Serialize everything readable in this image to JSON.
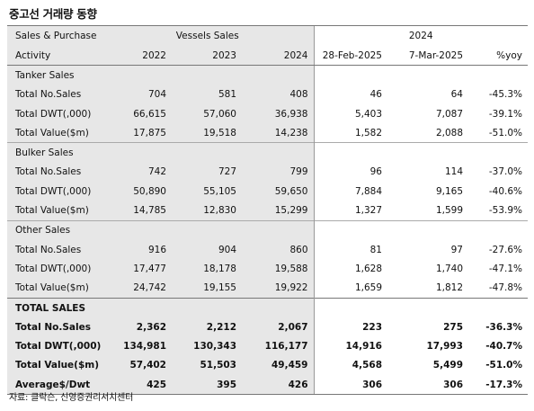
{
  "title": "중고선 거래량 동향",
  "source": "자료: 클락슨, 신영증권리서치센터",
  "header": {
    "col0_row1": "Sales & Purchase",
    "col0_row2": "Activity",
    "group1": "Vessels Sales",
    "group2": "2024",
    "years": [
      "2022",
      "2023",
      "2024"
    ],
    "periods": [
      "28-Feb-2025",
      "7-Mar-2025",
      "%yoy"
    ]
  },
  "sections": [
    {
      "title": "Tanker Sales",
      "rows": [
        {
          "label": "Total No.Sales",
          "v": [
            "704",
            "581",
            "408",
            "46",
            "64",
            "-45.3%"
          ]
        },
        {
          "label": "Total DWT(,000)",
          "v": [
            "66,615",
            "57,060",
            "36,938",
            "5,403",
            "7,087",
            "-39.1%"
          ]
        },
        {
          "label": "Total Value($m)",
          "v": [
            "17,875",
            "19,518",
            "14,238",
            "1,582",
            "2,088",
            "-51.0%"
          ]
        }
      ]
    },
    {
      "title": "Bulker Sales",
      "rows": [
        {
          "label": "Total No.Sales",
          "v": [
            "742",
            "727",
            "799",
            "96",
            "114",
            "-37.0%"
          ]
        },
        {
          "label": "Total DWT(,000)",
          "v": [
            "50,890",
            "55,105",
            "59,650",
            "7,884",
            "9,165",
            "-40.6%"
          ]
        },
        {
          "label": "Total Value($m)",
          "v": [
            "14,785",
            "12,830",
            "15,299",
            "1,327",
            "1,599",
            "-53.9%"
          ]
        }
      ]
    },
    {
      "title": "Other Sales",
      "rows": [
        {
          "label": "Total No.Sales",
          "v": [
            "916",
            "904",
            "860",
            "81",
            "97",
            "-27.6%"
          ]
        },
        {
          "label": "Total DWT(,000)",
          "v": [
            "17,477",
            "18,178",
            "19,588",
            "1,628",
            "1,740",
            "-47.1%"
          ]
        },
        {
          "label": "Total Value($m)",
          "v": [
            "24,742",
            "19,155",
            "19,922",
            "1,659",
            "1,812",
            "-47.8%"
          ]
        }
      ]
    }
  ],
  "totals": {
    "title": "TOTAL SALES",
    "rows": [
      {
        "label": "Total No.Sales",
        "v": [
          "2,362",
          "2,212",
          "2,067",
          "223",
          "275",
          "-36.3%"
        ]
      },
      {
        "label": "Total DWT(,000)",
        "v": [
          "134,981",
          "130,343",
          "116,177",
          "14,916",
          "17,993",
          "-40.7%"
        ]
      },
      {
        "label": "Total Value($m)",
        "v": [
          "57,402",
          "51,503",
          "49,459",
          "4,568",
          "5,499",
          "-51.0%"
        ]
      },
      {
        "label": "Average$/Dwt",
        "v": [
          "425",
          "395",
          "426",
          "306",
          "306",
          "-17.3%"
        ]
      }
    ]
  }
}
